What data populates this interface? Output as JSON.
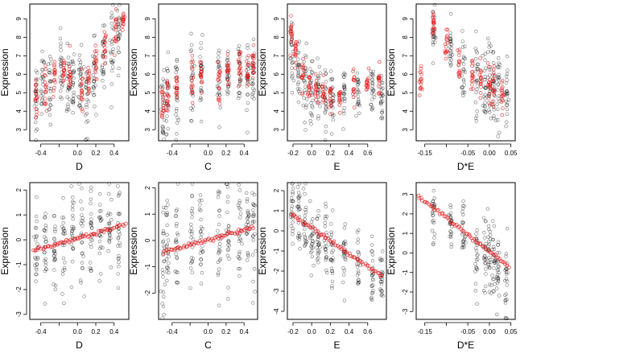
{
  "chart_data": [
    {
      "type": "scatter",
      "xlabel": "D",
      "ylabel": "Expression",
      "xlim": [
        -0.52,
        0.56
      ],
      "ylim": [
        2.4,
        9.8
      ],
      "xticks": [
        -0.4,
        -0.2,
        0.0,
        0.2,
        0.4
      ],
      "xtick_labels": [
        "-0.4",
        "",
        "0.0",
        "0.2",
        "0.4"
      ],
      "yticks": [
        3,
        4,
        5,
        6,
        7,
        8,
        9
      ],
      "black_groups": [
        [
          -0.45,
          4.8,
          1.0
        ],
        [
          -0.38,
          5.2,
          1.0
        ],
        [
          -0.3,
          5.3,
          1.0
        ],
        [
          -0.18,
          6.0,
          1.0
        ],
        [
          -0.1,
          5.5,
          1.0
        ],
        [
          -0.05,
          5.6,
          1.0
        ],
        [
          0.03,
          5.8,
          1.2
        ],
        [
          0.1,
          5.0,
          1.2
        ],
        [
          0.18,
          5.8,
          1.0
        ],
        [
          0.28,
          6.9,
          1.0
        ],
        [
          0.38,
          7.6,
          1.0
        ],
        [
          0.45,
          8.3,
          0.9
        ]
      ],
      "red_groups": [
        [
          -0.45,
          4.7,
          0.5
        ],
        [
          -0.35,
          5.3,
          0.5
        ],
        [
          -0.25,
          5.7,
          0.5
        ],
        [
          -0.15,
          6.2,
          0.5
        ],
        [
          -0.08,
          5.9,
          0.5
        ],
        [
          0.05,
          5.0,
          0.6
        ],
        [
          0.12,
          5.4,
          0.5
        ],
        [
          0.2,
          6.5,
          0.5
        ],
        [
          0.3,
          7.4,
          0.5
        ],
        [
          0.42,
          8.3,
          0.5
        ],
        [
          0.5,
          8.9,
          0.3
        ]
      ]
    },
    {
      "type": "scatter",
      "xlabel": "C",
      "ylabel": "Expression",
      "xlim": [
        -0.55,
        0.55
      ],
      "ylim": [
        2.4,
        9.8
      ],
      "xticks": [
        -0.4,
        -0.2,
        0.0,
        0.2,
        0.4
      ],
      "xtick_labels": [
        "-0.4",
        "",
        "0.0",
        "0.2",
        "0.4"
      ],
      "yticks": [
        3,
        4,
        5,
        6,
        7,
        8,
        9
      ],
      "black_groups": [
        [
          -0.5,
          4.3,
          1.0
        ],
        [
          -0.45,
          4.8,
          1.0
        ],
        [
          -0.35,
          5.2,
          1.0
        ],
        [
          -0.18,
          5.5,
          1.2
        ],
        [
          -0.08,
          5.9,
          1.1
        ],
        [
          0.12,
          5.3,
          1.2
        ],
        [
          0.22,
          5.9,
          1.0
        ],
        [
          0.35,
          6.3,
          1.0
        ],
        [
          0.44,
          5.7,
          1.0
        ],
        [
          0.5,
          6.1,
          1.0
        ]
      ],
      "red_groups": [
        [
          -0.5,
          4.5,
          0.5
        ],
        [
          -0.45,
          5.0,
          0.5
        ],
        [
          -0.35,
          5.3,
          0.5
        ],
        [
          -0.18,
          5.6,
          0.6
        ],
        [
          -0.08,
          5.9,
          0.5
        ],
        [
          0.12,
          5.5,
          0.6
        ],
        [
          0.22,
          6.2,
          0.5
        ],
        [
          0.35,
          6.5,
          0.5
        ],
        [
          0.44,
          6.0,
          0.5
        ],
        [
          0.5,
          6.5,
          0.5
        ]
      ]
    },
    {
      "type": "scatter",
      "xlabel": "E",
      "ylabel": "Expression",
      "xlim": [
        -0.26,
        0.8
      ],
      "ylim": [
        2.4,
        9.8
      ],
      "xticks": [
        -0.2,
        0.0,
        0.2,
        0.4,
        0.6
      ],
      "xtick_labels": [
        "-0.2",
        "0.0",
        "0.2",
        "0.4",
        "0.6"
      ],
      "yticks": [
        3,
        4,
        5,
        6,
        7,
        8,
        9
      ],
      "black_groups": [
        [
          -0.21,
          6.7,
          1.1
        ],
        [
          -0.14,
          6.1,
          1.0
        ],
        [
          -0.07,
          5.6,
          1.0
        ],
        [
          0.0,
          5.2,
          0.9
        ],
        [
          0.07,
          5.1,
          0.8
        ],
        [
          0.15,
          4.8,
          0.8
        ],
        [
          0.22,
          4.6,
          0.7
        ],
        [
          0.35,
          5.0,
          0.7
        ],
        [
          0.5,
          4.8,
          0.6
        ],
        [
          0.65,
          5.4,
          0.6
        ],
        [
          0.75,
          4.6,
          0.6
        ]
      ],
      "red_groups": [
        [
          -0.22,
          8.2,
          0.4
        ],
        [
          -0.17,
          7.2,
          0.4
        ],
        [
          -0.1,
          6.1,
          0.5
        ],
        [
          -0.03,
          5.4,
          0.4
        ],
        [
          0.05,
          5.1,
          0.4
        ],
        [
          0.12,
          4.9,
          0.4
        ],
        [
          0.2,
          4.8,
          0.4
        ],
        [
          0.3,
          4.9,
          0.4
        ],
        [
          0.45,
          5.2,
          0.4
        ],
        [
          0.6,
          5.4,
          0.4
        ],
        [
          0.72,
          5.5,
          0.4
        ]
      ]
    },
    {
      "type": "scatter",
      "xlabel": "D*E",
      "ylabel": "Expression",
      "xlim": [
        -0.17,
        0.06
      ],
      "ylim": [
        2.4,
        9.8
      ],
      "xticks": [
        -0.15,
        -0.1,
        -0.05,
        0.0,
        0.05
      ],
      "xtick_labels": [
        "-0.15",
        "",
        "-0.05",
        "0.00",
        "0.05"
      ],
      "yticks": [
        3,
        4,
        5,
        6,
        7,
        8,
        9
      ],
      "black_groups": [
        [
          -0.13,
          8.3,
          0.8
        ],
        [
          -0.09,
          7.2,
          0.8
        ],
        [
          -0.06,
          6.1,
          0.9
        ],
        [
          -0.03,
          5.7,
          1.0
        ],
        [
          -0.01,
          5.6,
          1.1
        ],
        [
          0.0,
          5.8,
          1.2
        ],
        [
          0.01,
          5.4,
          1.2
        ],
        [
          0.02,
          5.2,
          1.1
        ],
        [
          0.04,
          4.9,
          1.0
        ]
      ],
      "red_groups": [
        [
          -0.16,
          5.6,
          0.4
        ],
        [
          -0.13,
          8.6,
          0.4
        ],
        [
          -0.1,
          7.4,
          0.5
        ],
        [
          -0.07,
          6.5,
          0.5
        ],
        [
          -0.04,
          5.9,
          0.5
        ],
        [
          -0.02,
          5.8,
          0.5
        ],
        [
          0.0,
          5.5,
          0.6
        ],
        [
          0.01,
          5.3,
          0.6
        ],
        [
          0.03,
          5.0,
          0.5
        ]
      ]
    },
    {
      "type": "scatter",
      "xlabel": "D",
      "ylabel": "Expression",
      "xlim": [
        -0.52,
        0.56
      ],
      "ylim": [
        -3.2,
        2.3
      ],
      "xticks": [
        -0.4,
        -0.2,
        0.0,
        0.2,
        0.4
      ],
      "xtick_labels": [
        "-0.4",
        "",
        "0.0",
        "0.2",
        "0.4"
      ],
      "yticks": [
        -3,
        -2,
        -1,
        0,
        1,
        2
      ],
      "black_groups": [
        [
          -0.45,
          -0.4,
          1.0
        ],
        [
          -0.35,
          -0.2,
          1.0
        ],
        [
          -0.25,
          -0.1,
          1.0
        ],
        [
          -0.15,
          0.0,
          1.0
        ],
        [
          -0.05,
          0.2,
          1.0
        ],
        [
          0.05,
          0.1,
          1.1
        ],
        [
          0.15,
          0.4,
          1.0
        ],
        [
          0.25,
          0.5,
          1.0
        ],
        [
          0.35,
          0.6,
          1.0
        ],
        [
          0.45,
          0.5,
          0.9
        ]
      ],
      "red_line": {
        "x": [
          -0.48,
          0.52
        ],
        "y": [
          -0.45,
          0.62
        ]
      }
    },
    {
      "type": "scatter",
      "xlabel": "C",
      "ylabel": "Expression",
      "xlim": [
        -0.55,
        0.55
      ],
      "ylim": [
        -3.0,
        2.2
      ],
      "xticks": [
        -0.4,
        -0.2,
        0.0,
        0.2,
        0.4
      ],
      "xtick_labels": [
        "-0.4",
        "",
        "0.0",
        "0.2",
        "0.4"
      ],
      "yticks": [
        -2,
        -1,
        0,
        1,
        2
      ],
      "black_groups": [
        [
          -0.5,
          -0.6,
          1.0
        ],
        [
          -0.45,
          -0.3,
          1.0
        ],
        [
          -0.35,
          -0.1,
          1.0
        ],
        [
          -0.18,
          0.0,
          1.1
        ],
        [
          -0.08,
          0.2,
          1.0
        ],
        [
          0.12,
          0.0,
          1.1
        ],
        [
          0.22,
          0.3,
          1.0
        ],
        [
          0.35,
          0.3,
          1.0
        ],
        [
          0.44,
          0.5,
          1.0
        ],
        [
          0.5,
          0.6,
          1.0
        ]
      ],
      "red_line": {
        "x": [
          -0.5,
          0.5
        ],
        "y": [
          -0.45,
          0.5
        ]
      }
    },
    {
      "type": "scatter",
      "xlabel": "E",
      "ylabel": "Expression",
      "xlim": [
        -0.26,
        0.8
      ],
      "ylim": [
        -4.4,
        2.4
      ],
      "xticks": [
        -0.2,
        0.0,
        0.2,
        0.4,
        0.6
      ],
      "xtick_labels": [
        "-0.2",
        "0.0",
        "0.2",
        "0.4",
        "0.6"
      ],
      "yticks": [
        -4,
        -3,
        -2,
        -1,
        0,
        1,
        2
      ],
      "black_groups": [
        [
          -0.21,
          1.0,
          0.9
        ],
        [
          -0.14,
          0.6,
          0.9
        ],
        [
          -0.07,
          0.2,
          0.9
        ],
        [
          0.0,
          -0.2,
          0.9
        ],
        [
          0.07,
          -0.4,
          0.9
        ],
        [
          0.15,
          -0.6,
          0.9
        ],
        [
          0.22,
          -1.0,
          0.9
        ],
        [
          0.35,
          -1.0,
          0.8
        ],
        [
          0.5,
          -1.5,
          0.8
        ],
        [
          0.65,
          -2.0,
          0.8
        ],
        [
          0.75,
          -2.5,
          0.8
        ]
      ],
      "red_line": {
        "x": [
          -0.22,
          0.75
        ],
        "y": [
          0.85,
          -2.25
        ]
      }
    },
    {
      "type": "scatter",
      "xlabel": "D*E",
      "ylabel": "Expression",
      "xlim": [
        -0.17,
        0.06
      ],
      "ylim": [
        -3.4,
        3.6
      ],
      "xticks": [
        -0.15,
        -0.1,
        -0.05,
        0.0,
        0.05
      ],
      "xtick_labels": [
        "-0.15",
        "",
        "-0.05",
        "0.00",
        "0.05"
      ],
      "yticks": [
        -3,
        -2,
        -1,
        0,
        1,
        2,
        3
      ],
      "black_groups": [
        [
          -0.13,
          2.0,
          0.8
        ],
        [
          -0.09,
          1.5,
          0.8
        ],
        [
          -0.06,
          1.0,
          0.8
        ],
        [
          -0.03,
          0.2,
          0.9
        ],
        [
          -0.01,
          -0.3,
          1.0
        ],
        [
          0.0,
          -0.4,
          1.2
        ],
        [
          0.01,
          -0.6,
          1.2
        ],
        [
          0.02,
          -0.8,
          1.0
        ],
        [
          0.04,
          -1.2,
          0.9
        ]
      ],
      "red_line": {
        "x": [
          -0.165,
          0.045
        ],
        "y": [
          2.9,
          -0.7
        ]
      }
    }
  ]
}
